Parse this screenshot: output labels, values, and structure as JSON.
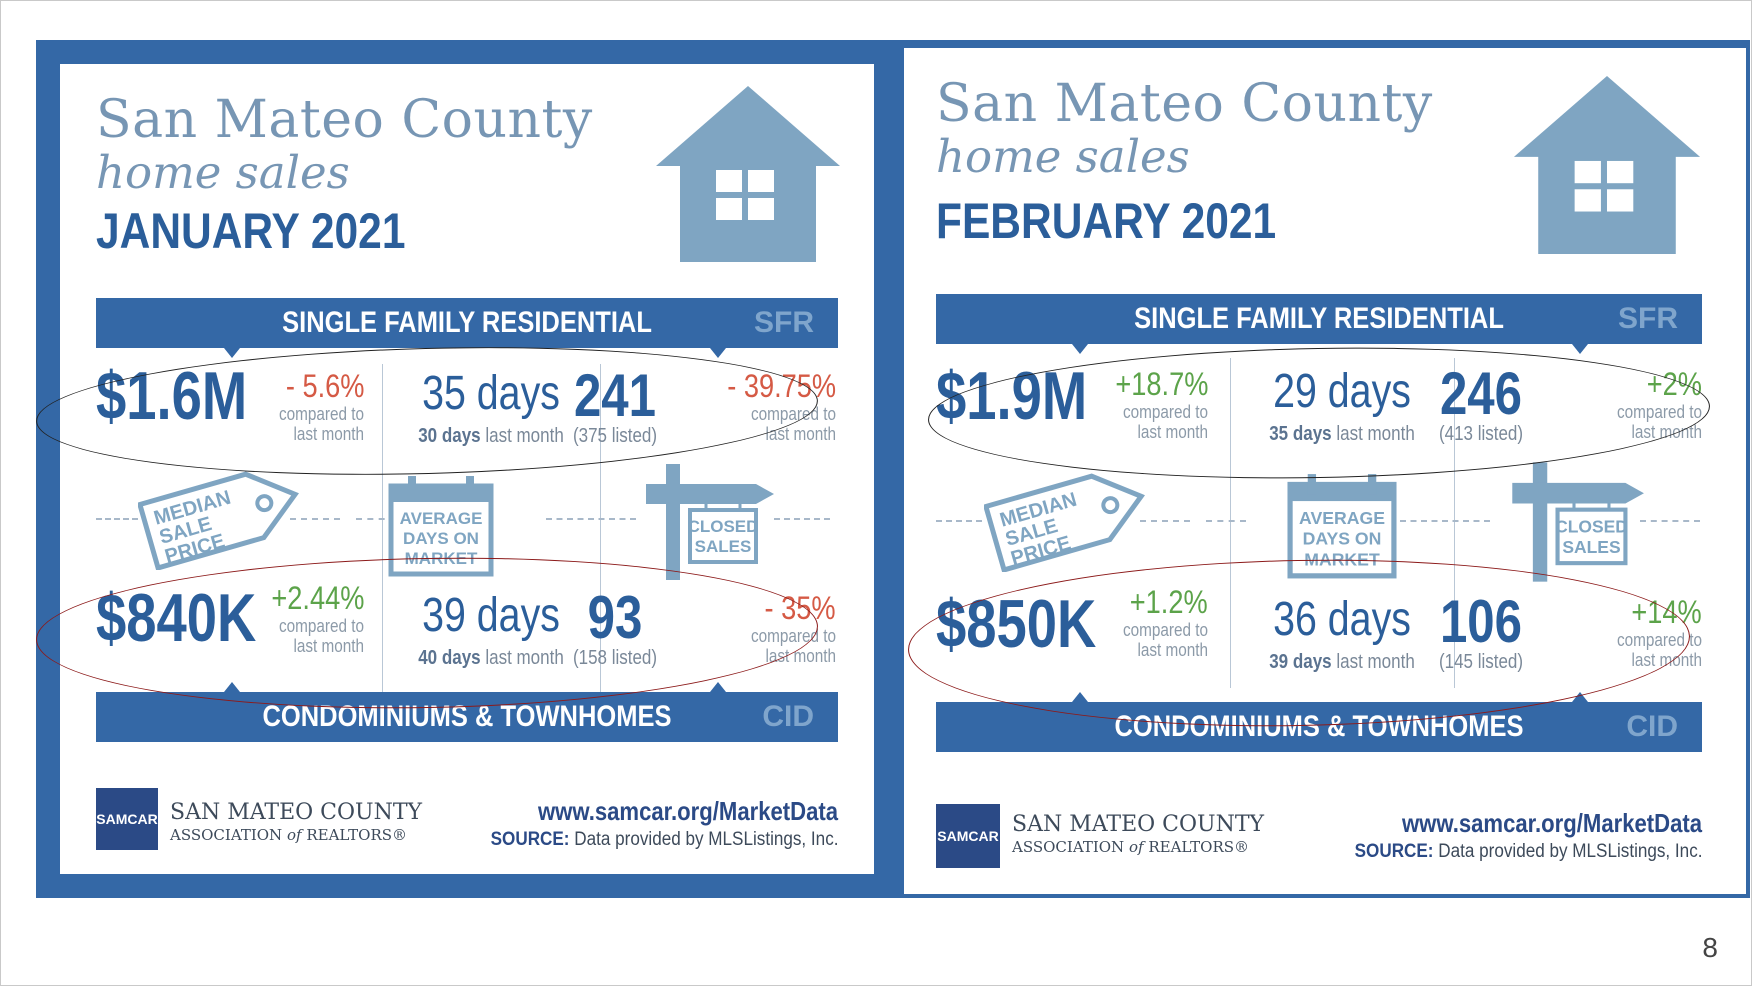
{
  "page_number": "8",
  "cards": [
    {
      "title_line1": "San Mateo County",
      "title_line2": "home sales",
      "month": "JANUARY 2021",
      "sfr_label": "SINGLE FAMILY RESIDENTIAL",
      "sfr_tag": "SFR",
      "cid_label": "CONDOMINIUMS & TOWNHOMES",
      "cid_tag": "CID",
      "icon_median": [
        "MEDIAN",
        "SALE",
        "PRICE"
      ],
      "icon_days": [
        "AVERAGE",
        "DAYS ON",
        "MARKET"
      ],
      "icon_closed": [
        "CLOSED",
        "SALES"
      ],
      "sfr": {
        "price": "$1.6M",
        "price_change": "- 5.6%",
        "price_change_color": "#d55a45",
        "compared_1": "compared to",
        "compared_2": "last month",
        "days": "35 days",
        "days_prev_num": "30 days",
        "days_prev_text": "last month",
        "sales": "241",
        "sales_listed": "(375 listed)",
        "sales_change": "- 39.75%",
        "sales_change_color": "#d55a45"
      },
      "cid": {
        "price": "$840K",
        "price_change": "+2.44%",
        "price_change_color": "#5ca34a",
        "compared_1": "compared to",
        "compared_2": "last month",
        "days": "39 days",
        "days_prev_num": "40 days",
        "days_prev_text": "last month",
        "sales": "93",
        "sales_listed": "(158 listed)",
        "sales_change": "- 35%",
        "sales_change_color": "#d55a45"
      },
      "samcar": "SAMCAR",
      "org_line1": "SAN MATEO COUNTY",
      "org_line2_a": "ASSOCIATION",
      "org_line2_b": "of",
      "org_line2_c": "REALTORS®",
      "url": "www.samcar.org/MarketData",
      "source_label": "SOURCE:",
      "source_text": "Data provided by MLSListings, Inc."
    },
    {
      "title_line1": "San Mateo County",
      "title_line2": "home sales",
      "month": "FEBRUARY 2021",
      "sfr_label": "SINGLE FAMILY RESIDENTIAL",
      "sfr_tag": "SFR",
      "cid_label": "CONDOMINIUMS & TOWNHOMES",
      "cid_tag": "CID",
      "icon_median": [
        "MEDIAN",
        "SALE",
        "PRICE"
      ],
      "icon_days": [
        "AVERAGE",
        "DAYS ON",
        "MARKET"
      ],
      "icon_closed": [
        "CLOSED",
        "SALES"
      ],
      "sfr": {
        "price": "$1.9M",
        "price_change": "+18.7%",
        "price_change_color": "#5ca34a",
        "compared_1": "compared to",
        "compared_2": "last month",
        "days": "29 days",
        "days_prev_num": "35 days",
        "days_prev_text": "last month",
        "sales": "246",
        "sales_listed": "(413 listed)",
        "sales_change": "+2%",
        "sales_change_color": "#5ca34a"
      },
      "cid": {
        "price": "$850K",
        "price_change": "+1.2%",
        "price_change_color": "#5ca34a",
        "compared_1": "compared to",
        "compared_2": "last month",
        "days": "36 days",
        "days_prev_num": "39 days",
        "days_prev_text": "last month",
        "sales": "106",
        "sales_listed": "(145 listed)",
        "sales_change": "+14%",
        "sales_change_color": "#5ca34a"
      },
      "samcar": "SAMCAR",
      "org_line1": "SAN MATEO COUNTY",
      "org_line2_a": "ASSOCIATION",
      "org_line2_b": "of",
      "org_line2_c": "REALTORS®",
      "url": "www.samcar.org/MarketData",
      "source_label": "SOURCE:",
      "source_text": "Data provided by MLSListings, Inc."
    }
  ]
}
